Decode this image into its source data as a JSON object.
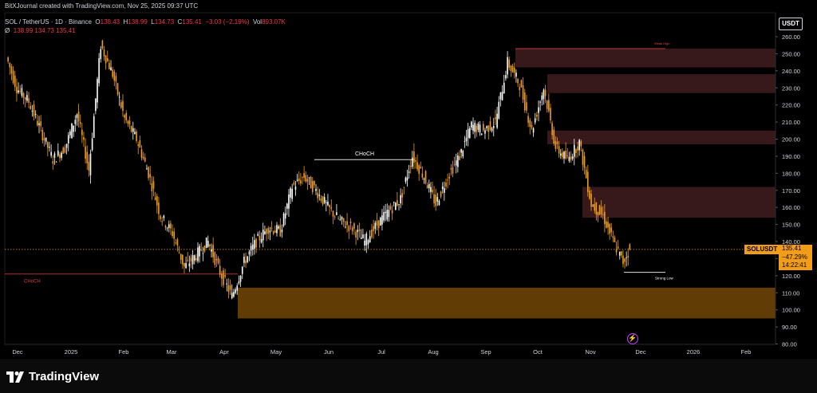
{
  "header": {
    "credit": "BitXJournal created with TradingView.com, Nov 25, 2025 09:37 UTC",
    "symbol_line": "SOL / TetherUS · 1D · Binance",
    "open_label": "O",
    "open_value": "138.43",
    "high_label": "H",
    "high_value": "138.99",
    "low_label": "L",
    "low_value": "134.73",
    "close_label": "C",
    "close_value": "135.41",
    "change": "−3.03 (−2.19%)",
    "vol_label": "Vol",
    "vol_value": "893.07K",
    "indicator_symbol": "Ø",
    "indicator_values": "138.99  134.73  135.41"
  },
  "price_axis": {
    "currency": "USDT",
    "ticks": [
      "260.00",
      "250.00",
      "240.00",
      "230.00",
      "220.00",
      "210.00",
      "200.00",
      "190.00",
      "180.00",
      "170.00",
      "160.00",
      "150.00",
      "140.00",
      "130.00",
      "120.00",
      "110.00",
      "100.00",
      "90.00",
      "80.00"
    ]
  },
  "time_axis": {
    "labels": [
      "Dec",
      "2025",
      "Feb",
      "Mar",
      "Apr",
      "May",
      "Jun",
      "Jul",
      "Aug",
      "Sep",
      "Oct",
      "Nov",
      "Dec",
      "2026",
      "Feb"
    ]
  },
  "price_tag": {
    "symbol": "SOLUSDT",
    "price": "135.41",
    "change": "−47.29%",
    "countdown": "14:22:41"
  },
  "annotations": {
    "choch_top": "CHoCH",
    "choch_left": "CHoCH",
    "weak_high": "Weak High",
    "strong_low": "Strong Low"
  },
  "footer": {
    "brand": "TradingView"
  },
  "colors": {
    "up": "#ffffff",
    "down": "#f29d18",
    "supply_zone": "#3a1a1e",
    "demand_zone": "#6b4206",
    "axis_text": "#d1d4dc",
    "accent": "#f29d18"
  },
  "chart_data": {
    "type": "candlestick",
    "title": "SOL / TetherUS · 1D · Binance",
    "ylim": [
      80,
      265
    ],
    "y_ticks": [
      260,
      250,
      240,
      230,
      220,
      210,
      200,
      190,
      180,
      170,
      160,
      150,
      140,
      130,
      120,
      110,
      100,
      90,
      80
    ],
    "x_labels": [
      "Dec",
      "2025",
      "Feb",
      "Mar",
      "Apr",
      "May",
      "Jun",
      "Jul",
      "Aug",
      "Sep",
      "Oct",
      "Nov",
      "Dec",
      "2026",
      "Feb"
    ],
    "close_path": [
      [
        "2024-11-25",
        248
      ],
      [
        "2024-12-01",
        230
      ],
      [
        "2024-12-08",
        222
      ],
      [
        "2024-12-15",
        205
      ],
      [
        "2024-12-22",
        188
      ],
      [
        "2024-12-29",
        195
      ],
      [
        "2025-01-05",
        215
      ],
      [
        "2025-01-12",
        182
      ],
      [
        "2025-01-19",
        255
      ],
      [
        "2025-01-26",
        238
      ],
      [
        "2025-02-02",
        212
      ],
      [
        "2025-02-09",
        200
      ],
      [
        "2025-02-16",
        180
      ],
      [
        "2025-02-23",
        155
      ],
      [
        "2025-03-02",
        145
      ],
      [
        "2025-03-09",
        125
      ],
      [
        "2025-03-16",
        132
      ],
      [
        "2025-03-23",
        140
      ],
      [
        "2025-03-30",
        122
      ],
      [
        "2025-04-06",
        108
      ],
      [
        "2025-04-13",
        128
      ],
      [
        "2025-04-20",
        140
      ],
      [
        "2025-04-27",
        148
      ],
      [
        "2025-05-04",
        146
      ],
      [
        "2025-05-11",
        172
      ],
      [
        "2025-05-18",
        178
      ],
      [
        "2025-05-25",
        170
      ],
      [
        "2025-06-01",
        160
      ],
      [
        "2025-06-08",
        152
      ],
      [
        "2025-06-15",
        148
      ],
      [
        "2025-06-22",
        140
      ],
      [
        "2025-06-29",
        150
      ],
      [
        "2025-07-06",
        158
      ],
      [
        "2025-07-13",
        165
      ],
      [
        "2025-07-20",
        190
      ],
      [
        "2025-07-27",
        178
      ],
      [
        "2025-08-03",
        162
      ],
      [
        "2025-08-10",
        178
      ],
      [
        "2025-08-17",
        190
      ],
      [
        "2025-08-24",
        208
      ],
      [
        "2025-08-31",
        205
      ],
      [
        "2025-09-07",
        210
      ],
      [
        "2025-09-14",
        245
      ],
      [
        "2025-09-21",
        232
      ],
      [
        "2025-09-28",
        205
      ],
      [
        "2025-10-05",
        230
      ],
      [
        "2025-10-12",
        195
      ],
      [
        "2025-10-19",
        188
      ],
      [
        "2025-10-26",
        198
      ],
      [
        "2025-11-02",
        162
      ],
      [
        "2025-11-09",
        155
      ],
      [
        "2025-11-16",
        138
      ],
      [
        "2025-11-21",
        128
      ],
      [
        "2025-11-25",
        135.41
      ]
    ],
    "zones": [
      {
        "kind": "supply",
        "top": 253,
        "bottom": 242
      },
      {
        "kind": "supply",
        "top": 238,
        "bottom": 227
      },
      {
        "kind": "supply",
        "top": 205,
        "bottom": 197
      },
      {
        "kind": "supply",
        "top": 172,
        "bottom": 154
      },
      {
        "kind": "demand",
        "top": 113,
        "bottom": 95
      }
    ],
    "levels": [
      {
        "label": "CHoCH",
        "price": 188
      },
      {
        "label": "CHoCH",
        "price": 121
      },
      {
        "label": "Weak High",
        "price": 253
      },
      {
        "label": "Strong Low",
        "price": 122
      }
    ],
    "last_price": 135.41
  }
}
